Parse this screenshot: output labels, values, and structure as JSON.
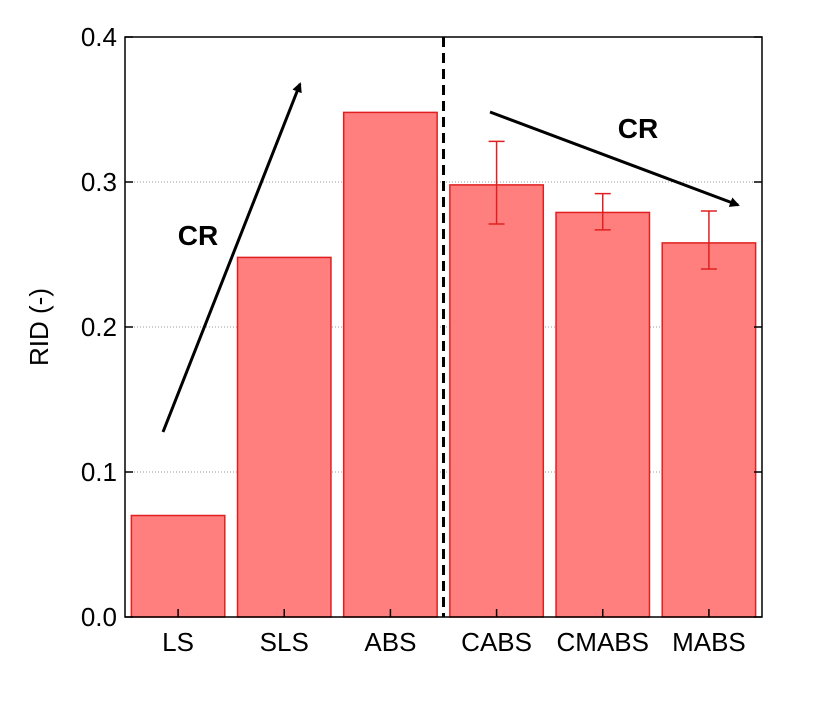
{
  "chart_data": {
    "type": "bar",
    "categories": [
      "LS",
      "SLS",
      "ABS",
      "CABS",
      "CMABS",
      "MABS"
    ],
    "values": [
      0.07,
      0.248,
      0.348,
      0.298,
      0.279,
      0.258
    ],
    "error_bars": [
      null,
      null,
      null,
      [
        0.271,
        0.328
      ],
      [
        0.267,
        0.292
      ],
      [
        0.24,
        0.28
      ]
    ],
    "ylabel": "RID (-)",
    "xlabel": "",
    "ylim": [
      0.0,
      0.4
    ],
    "yticks": [
      "0.0",
      "0.1",
      "0.2",
      "0.3",
      "0.4"
    ],
    "ytick_values": [
      0.0,
      0.1,
      0.2,
      0.3,
      0.4
    ],
    "grid": "horizontal-dotted",
    "divider_between": [
      "ABS",
      "CABS"
    ],
    "annotations": [
      {
        "label": "CR",
        "direction": "increasing",
        "from_category": "LS",
        "to_category": "SLS"
      },
      {
        "label": "CR",
        "direction": "decreasing",
        "from_category": "CABS",
        "to_category": "MABS"
      }
    ],
    "colors": {
      "bar_fill": "#ff7f7f",
      "bar_edge": "#e02020",
      "error": "#e02020"
    }
  }
}
